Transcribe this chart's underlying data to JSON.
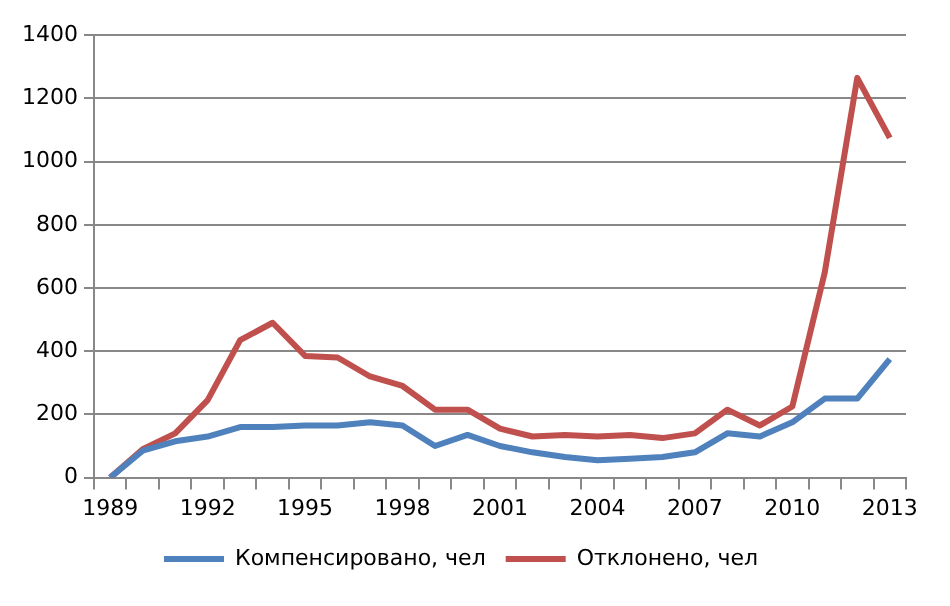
{
  "chart_data": {
    "type": "line",
    "categories": [
      "1989",
      null,
      null,
      "1992",
      null,
      null,
      "1995",
      null,
      null,
      "1998",
      null,
      null,
      "2001",
      null,
      null,
      "2004",
      null,
      null,
      "2007",
      null,
      null,
      "2010",
      null,
      null,
      "2013"
    ],
    "series": [
      {
        "name": "Компенсировано, чел",
        "color": "#4f81bd",
        "values": [
          0,
          85,
          115,
          130,
          160,
          160,
          165,
          165,
          175,
          165,
          100,
          135,
          100,
          80,
          65,
          55,
          60,
          65,
          80,
          140,
          130,
          175,
          250,
          250,
          375
        ]
      },
      {
        "name": "Отклонено, чел",
        "color": "#c0504d",
        "values": [
          0,
          90,
          140,
          245,
          435,
          490,
          385,
          380,
          320,
          290,
          215,
          215,
          155,
          130,
          135,
          130,
          135,
          125,
          140,
          215,
          165,
          225,
          650,
          1265,
          1075
        ]
      }
    ],
    "ylim": [
      0,
      1400
    ],
    "yticks": [
      0,
      200,
      400,
      600,
      800,
      1000,
      1200,
      1400
    ],
    "grid": "y",
    "legend": "bottom",
    "marker": "none",
    "line_style": "solid"
  }
}
